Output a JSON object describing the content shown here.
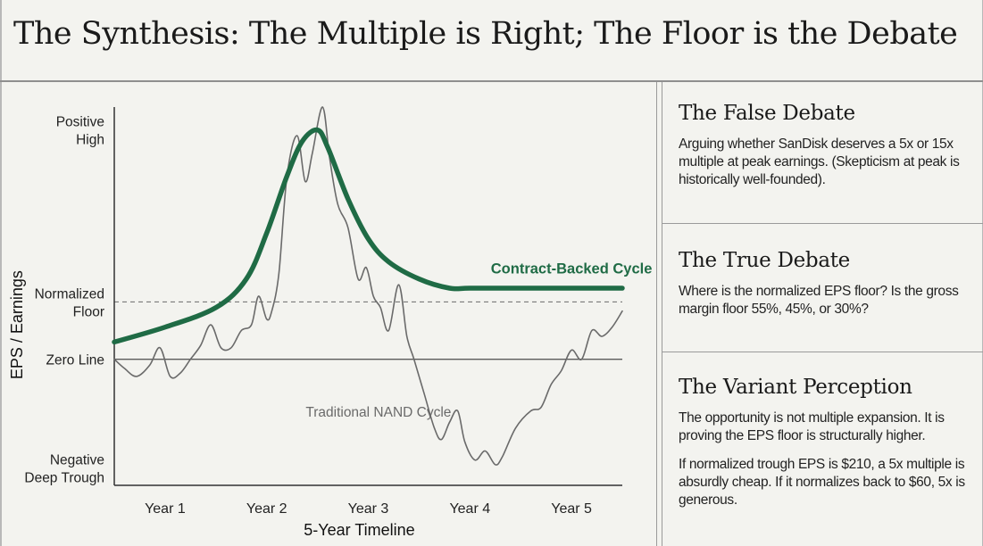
{
  "title": "The Synthesis: The Multiple is Right; The Floor is the Debate",
  "colors": {
    "accent_green": "#1f6b45",
    "gray_line": "#6a6a6a",
    "background": "#f3f3ef"
  },
  "chart_data": {
    "type": "line",
    "xlabel": "5-Year Timeline",
    "ylabel": "EPS / Earnings",
    "x_ticks": [
      "Year 1",
      "Year 2",
      "Year 3",
      "Year 4",
      "Year 5"
    ],
    "xlim": [
      0.5,
      5.5
    ],
    "ylim": [
      -1.1,
      2.2
    ],
    "y_ticks": [
      {
        "value": 2.0,
        "label": "Positive\nHigh"
      },
      {
        "value": 0.5,
        "label": "Normalized\nFloor"
      },
      {
        "value": 0,
        "label": "Zero Line"
      },
      {
        "value": -0.95,
        "label": "Negative\nDeep Trough"
      }
    ],
    "reference_lines": [
      {
        "value": 0.5,
        "style": "dashed"
      },
      {
        "value": 0,
        "style": "solid"
      }
    ],
    "series": [
      {
        "name": "Contract-Backed Cycle",
        "color": "#1f6b45",
        "points": [
          [
            0.5,
            0.15
          ],
          [
            1.0,
            0.28
          ],
          [
            1.5,
            0.45
          ],
          [
            1.8,
            0.7
          ],
          [
            2.0,
            1.1
          ],
          [
            2.2,
            1.6
          ],
          [
            2.35,
            1.9
          ],
          [
            2.5,
            2.0
          ],
          [
            2.6,
            1.85
          ],
          [
            2.8,
            1.4
          ],
          [
            3.0,
            1.05
          ],
          [
            3.2,
            0.85
          ],
          [
            3.5,
            0.7
          ],
          [
            3.8,
            0.62
          ],
          [
            4.0,
            0.62
          ],
          [
            4.5,
            0.62
          ],
          [
            5.0,
            0.62
          ],
          [
            5.5,
            0.62
          ]
        ]
      },
      {
        "name": "Traditional NAND Cycle",
        "color": "#6a6a6a",
        "points": [
          [
            0.5,
            0.0
          ],
          [
            0.6,
            -0.08
          ],
          [
            0.72,
            -0.15
          ],
          [
            0.85,
            -0.05
          ],
          [
            0.95,
            0.1
          ],
          [
            1.05,
            -0.15
          ],
          [
            1.15,
            -0.12
          ],
          [
            1.25,
            0.0
          ],
          [
            1.35,
            0.12
          ],
          [
            1.45,
            0.3
          ],
          [
            1.55,
            0.1
          ],
          [
            1.65,
            0.1
          ],
          [
            1.75,
            0.25
          ],
          [
            1.85,
            0.3
          ],
          [
            1.92,
            0.55
          ],
          [
            2.0,
            0.35
          ],
          [
            2.05,
            0.42
          ],
          [
            2.12,
            0.75
          ],
          [
            2.2,
            1.6
          ],
          [
            2.3,
            1.95
          ],
          [
            2.38,
            1.55
          ],
          [
            2.45,
            1.8
          ],
          [
            2.55,
            2.2
          ],
          [
            2.62,
            1.75
          ],
          [
            2.7,
            1.35
          ],
          [
            2.8,
            1.15
          ],
          [
            2.9,
            0.7
          ],
          [
            2.98,
            0.8
          ],
          [
            3.05,
            0.55
          ],
          [
            3.12,
            0.45
          ],
          [
            3.2,
            0.25
          ],
          [
            3.3,
            0.65
          ],
          [
            3.38,
            0.2
          ],
          [
            3.45,
            0.0
          ],
          [
            3.55,
            -0.3
          ],
          [
            3.65,
            -0.6
          ],
          [
            3.72,
            -0.7
          ],
          [
            3.8,
            -0.55
          ],
          [
            3.88,
            -0.45
          ],
          [
            3.95,
            -0.72
          ],
          [
            4.05,
            -0.88
          ],
          [
            4.15,
            -0.8
          ],
          [
            4.25,
            -0.92
          ],
          [
            4.32,
            -0.85
          ],
          [
            4.45,
            -0.6
          ],
          [
            4.6,
            -0.45
          ],
          [
            4.7,
            -0.42
          ],
          [
            4.8,
            -0.22
          ],
          [
            4.9,
            -0.1
          ],
          [
            5.0,
            0.08
          ],
          [
            5.1,
            0.0
          ],
          [
            5.2,
            0.25
          ],
          [
            5.3,
            0.2
          ],
          [
            5.4,
            0.28
          ],
          [
            5.5,
            0.42
          ]
        ]
      }
    ],
    "annotations": [
      {
        "text": "Contract-Backed Cycle",
        "x": 5.0,
        "y": 0.75,
        "color": "#1f6b45"
      },
      {
        "text": "Traditional NAND Cycle",
        "x": 3.1,
        "y": -0.5,
        "color": "#6a6a6a"
      }
    ]
  },
  "panels": [
    {
      "heading": "The False Debate",
      "paragraphs": [
        "Arguing whether SanDisk deserves a 5x or 15x multiple at peak earnings. (Skepticism at peak is historically well-founded)."
      ]
    },
    {
      "heading": "The True Debate",
      "paragraphs": [
        "Where is the normalized EPS floor? Is the gross margin floor 55%, 45%, or 30%?"
      ]
    },
    {
      "heading": "The Variant Perception",
      "paragraphs": [
        "The opportunity is not multiple expansion. It is proving the EPS floor is structurally higher.",
        "If normalized trough EPS is $210, a 5x multiple is absurdly cheap. If it normalizes back to $60, 5x is generous."
      ]
    }
  ]
}
